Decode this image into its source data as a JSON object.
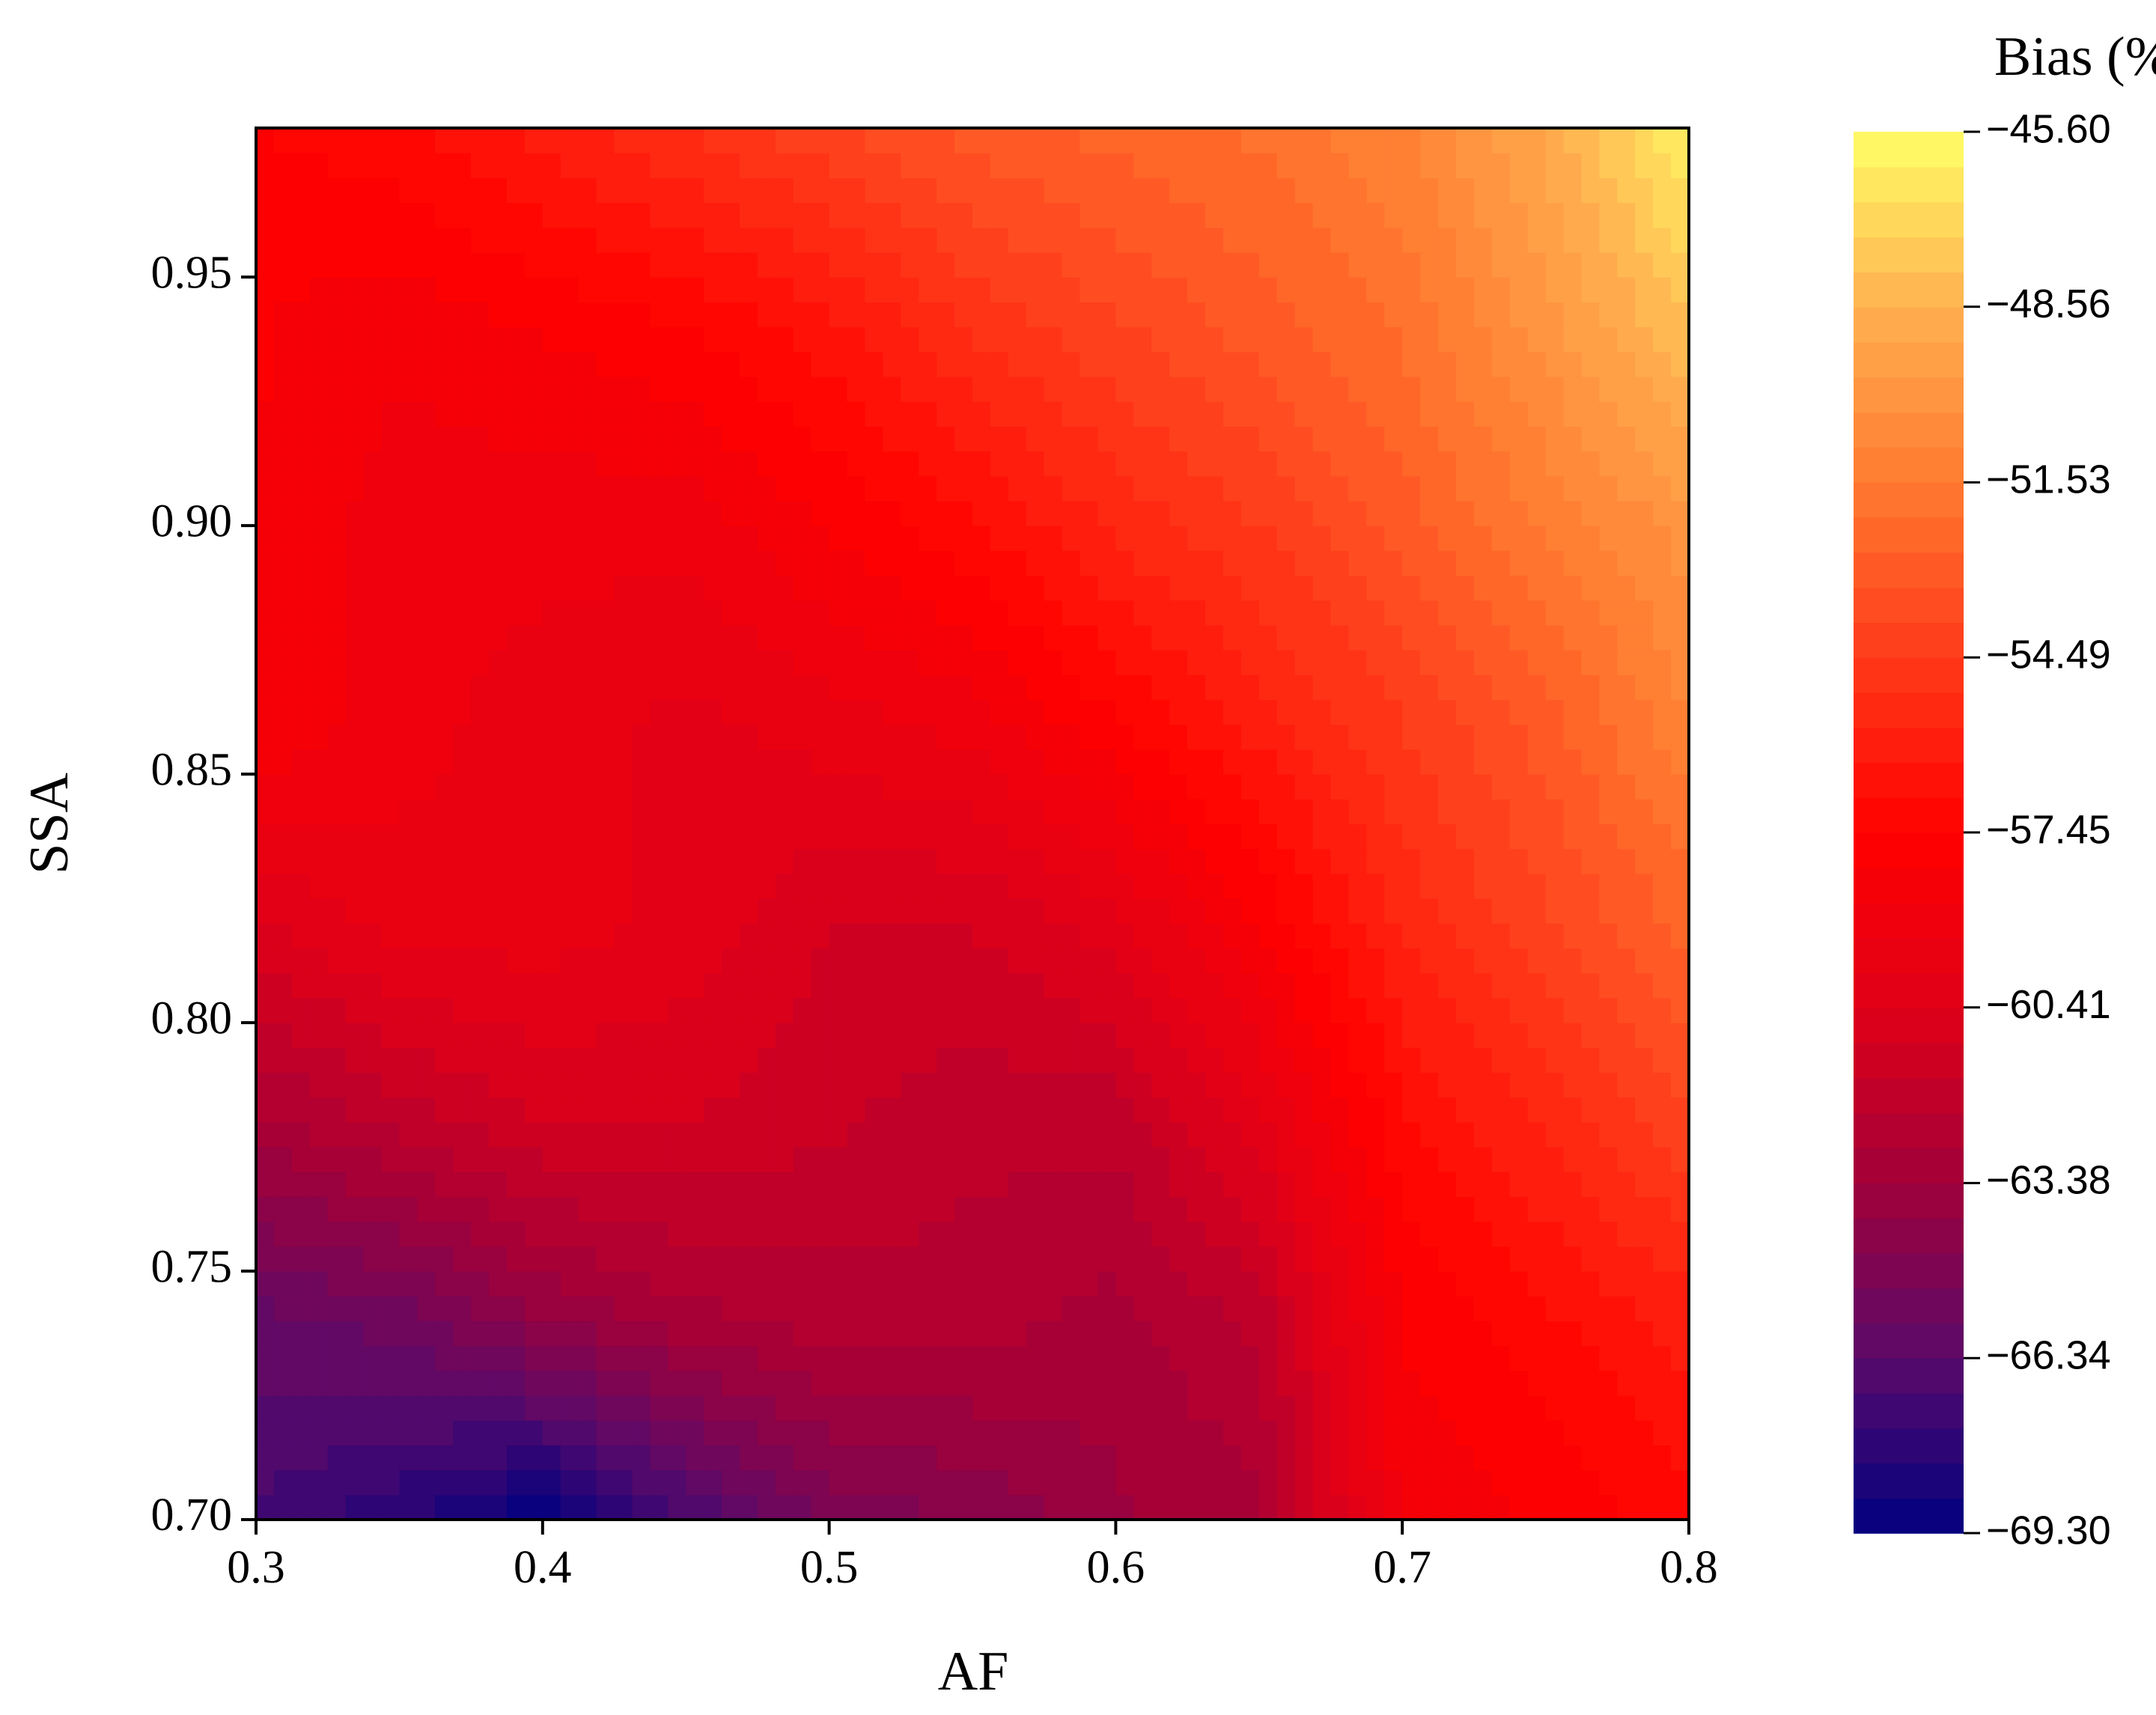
{
  "chart_data": {
    "type": "contour",
    "x_label": "AF",
    "y_label": "SSA",
    "colorbar_title": "Bias (%)",
    "x": [
      0.3,
      0.35,
      0.4,
      0.45,
      0.5,
      0.55,
      0.6,
      0.65,
      0.7,
      0.75,
      0.8
    ],
    "y": [
      0.7,
      0.74,
      0.78,
      0.82,
      0.86,
      0.9,
      0.94,
      0.98
    ],
    "z": [
      [
        -67,
        -68,
        -69.3,
        -67,
        -65,
        -64.5,
        -63.5,
        -63,
        -58.5,
        -58,
        -57
      ],
      [
        -66,
        -65.5,
        -64,
        -63,
        -62.5,
        -62.5,
        -63,
        -62,
        -58,
        -57,
        -56
      ],
      [
        -63,
        -62,
        -61,
        -61,
        -61.5,
        -62,
        -62,
        -60,
        -57,
        -55.5,
        -54
      ],
      [
        -60.5,
        -59.5,
        -59.5,
        -60,
        -61,
        -61,
        -60,
        -58,
        -55.5,
        -54,
        -52.5
      ],
      [
        -58,
        -59,
        -59.5,
        -60,
        -59.5,
        -59,
        -57.5,
        -56,
        -54.5,
        -53,
        -51
      ],
      [
        -58,
        -59,
        -59,
        -59,
        -58,
        -57,
        -55.5,
        -54.5,
        -53,
        -51.5,
        -50
      ],
      [
        -58,
        -58.5,
        -58,
        -57.5,
        -56.5,
        -55,
        -54,
        -53,
        -52,
        -50,
        -48
      ],
      [
        -57.5,
        -57,
        -56,
        -55,
        -54,
        -53,
        -52.5,
        -52,
        -51,
        -49,
        -46
      ]
    ],
    "xlim": [
      0.3,
      0.8
    ],
    "ylim": [
      0.7,
      0.98
    ],
    "xticks": [
      0.3,
      0.4,
      0.5,
      0.6,
      0.7,
      0.8
    ],
    "yticks": [
      {
        "value": 0.7,
        "label": "0.70"
      },
      0.75,
      {
        "value": 0.8,
        "label": "0.80"
      },
      0.85,
      {
        "value": 0.9,
        "label": "0.90"
      },
      0.95
    ],
    "zlim": [
      -69.3,
      -45.6
    ],
    "zticks": [
      {
        "value": -45.6,
        "label": "−45.60"
      },
      {
        "value": -48.56,
        "label": "−48.56"
      },
      {
        "value": -51.53,
        "label": "−51.53"
      },
      {
        "value": -54.49,
        "label": "−54.49"
      },
      {
        "value": -57.45,
        "label": "−57.45"
      },
      {
        "value": -60.41,
        "label": "−60.41"
      },
      {
        "value": -63.38,
        "label": "−63.38"
      },
      {
        "value": -66.34,
        "label": "−66.34"
      },
      {
        "value": -69.3,
        "label": "−69.30"
      }
    ],
    "levels": 40,
    "colormap": [
      "#000080",
      "#5a0a6a",
      "#a0003a",
      "#e00018",
      "#ff0000",
      "#ff3a1a",
      "#ff7a30",
      "#ffb050",
      "#ffff66"
    ]
  }
}
